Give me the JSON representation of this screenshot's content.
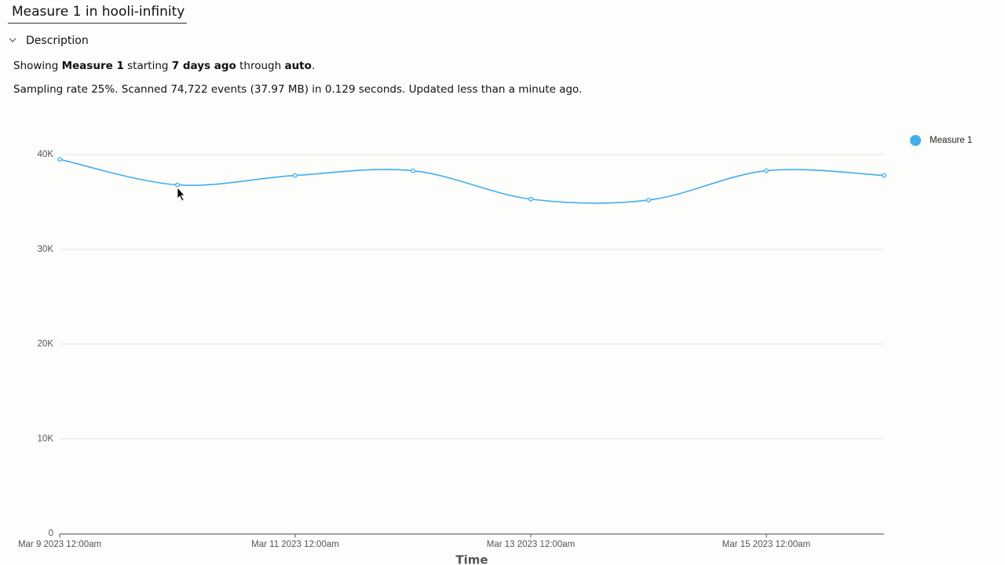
{
  "header": {
    "title": "Measure 1 in hooli-infinity",
    "section": "Description",
    "summary": [
      "Showing ",
      "Measure 1",
      " starting ",
      "7 days ago",
      " through ",
      "auto",
      "."
    ],
    "stats": "Sampling rate 25%. Scanned 74,722 events (37.97 MB) in 0.129 seconds. Updated less than a minute ago."
  },
  "chart_data": {
    "type": "line",
    "x_label": "Time",
    "categories": [
      "Mar 9 2023 12:00am",
      null,
      "Mar 11 2023 12:00am",
      null,
      "Mar 13 2023 12:00am",
      null,
      "Mar 15 2023 12:00am",
      null
    ],
    "series": [
      {
        "name": "Measure 1",
        "color": "#42aeee",
        "values": [
          39500,
          36800,
          37800,
          38300,
          35300,
          35200,
          38300,
          37800
        ]
      }
    ],
    "ylim": [
      0,
      40000
    ],
    "yticks": [
      0,
      {
        "value": 10000,
        "label": "10K"
      },
      {
        "value": 20000,
        "label": "20K"
      },
      {
        "value": 30000,
        "label": "30K"
      },
      {
        "value": 40000,
        "label": "40K"
      }
    ],
    "grid": true,
    "legend": "top-right"
  }
}
